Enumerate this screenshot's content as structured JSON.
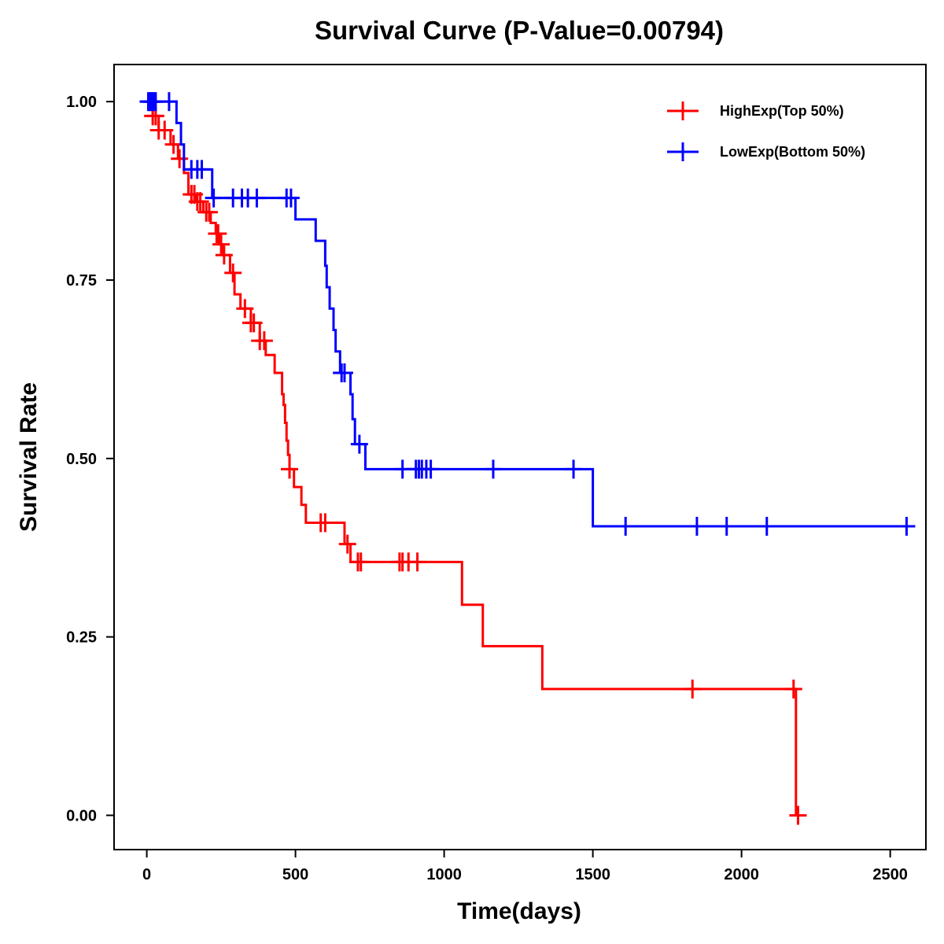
{
  "chart_data": {
    "type": "line",
    "subtype": "kaplan-meier-step",
    "title": "Survival Curve (P-Value=0.00794)",
    "xlabel": "Time(days)",
    "ylabel": "Survival Rate",
    "xlim": [
      -110,
      2620
    ],
    "ylim": [
      -0.048,
      1.052
    ],
    "x_ticks": [
      0,
      500,
      1000,
      1500,
      2000,
      2500
    ],
    "x_tick_labels": [
      "0",
      "500",
      "1000",
      "1500",
      "2000",
      "2500"
    ],
    "y_ticks": [
      0,
      0.25,
      0.5,
      0.75,
      1.0
    ],
    "y_tick_labels": [
      "0.00",
      "0.25",
      "0.50",
      "0.75",
      "1.00"
    ],
    "grid": false,
    "legend_position": "top-right",
    "series": [
      {
        "name": "HighExp(Top 50%)",
        "color": "#ff0000",
        "steps": [
          [
            0,
            1.0
          ],
          [
            20,
            0.98
          ],
          [
            40,
            0.96
          ],
          [
            80,
            0.94
          ],
          [
            105,
            0.92
          ],
          [
            125,
            0.9
          ],
          [
            140,
            0.87
          ],
          [
            165,
            0.86
          ],
          [
            190,
            0.845
          ],
          [
            215,
            0.83
          ],
          [
            232,
            0.815
          ],
          [
            245,
            0.8
          ],
          [
            255,
            0.785
          ],
          [
            280,
            0.76
          ],
          [
            295,
            0.73
          ],
          [
            315,
            0.71
          ],
          [
            350,
            0.69
          ],
          [
            380,
            0.665
          ],
          [
            400,
            0.645
          ],
          [
            430,
            0.62
          ],
          [
            455,
            0.59
          ],
          [
            460,
            0.575
          ],
          [
            465,
            0.55
          ],
          [
            470,
            0.525
          ],
          [
            475,
            0.505
          ],
          [
            480,
            0.485
          ],
          [
            495,
            0.46
          ],
          [
            520,
            0.435
          ],
          [
            535,
            0.41
          ],
          [
            665,
            0.38
          ],
          [
            685,
            0.355
          ],
          [
            1060,
            0.295
          ],
          [
            1130,
            0.237
          ],
          [
            1330,
            0.177
          ],
          [
            2183,
            0.0
          ]
        ],
        "end_time": 2183,
        "censor_times": [
          10,
          20,
          30,
          40,
          60,
          90,
          110,
          150,
          160,
          170,
          180,
          200,
          210,
          235,
          240,
          250,
          260,
          290,
          330,
          350,
          360,
          380,
          395,
          480,
          585,
          600,
          675,
          710,
          720,
          850,
          860,
          880,
          910,
          1835,
          2175,
          2190
        ]
      },
      {
        "name": "LowExp(Bottom 50%)",
        "color": "#0000ff",
        "steps": [
          [
            0,
            1.0
          ],
          [
            100,
            0.97
          ],
          [
            115,
            0.94
          ],
          [
            125,
            0.905
          ],
          [
            220,
            0.865
          ],
          [
            500,
            0.835
          ],
          [
            568,
            0.805
          ],
          [
            600,
            0.77
          ],
          [
            605,
            0.74
          ],
          [
            615,
            0.71
          ],
          [
            628,
            0.68
          ],
          [
            635,
            0.65
          ],
          [
            650,
            0.62
          ],
          [
            685,
            0.59
          ],
          [
            692,
            0.555
          ],
          [
            700,
            0.52
          ],
          [
            735,
            0.485
          ],
          [
            1500,
            0.405
          ]
        ],
        "end_time": 2560,
        "censor_times": [
          5,
          10,
          15,
          20,
          25,
          30,
          75,
          150,
          170,
          185,
          225,
          290,
          320,
          340,
          370,
          470,
          485,
          655,
          665,
          715,
          860,
          905,
          915,
          925,
          940,
          955,
          1165,
          1435,
          1610,
          1850,
          1950,
          2085,
          2555
        ]
      }
    ]
  }
}
